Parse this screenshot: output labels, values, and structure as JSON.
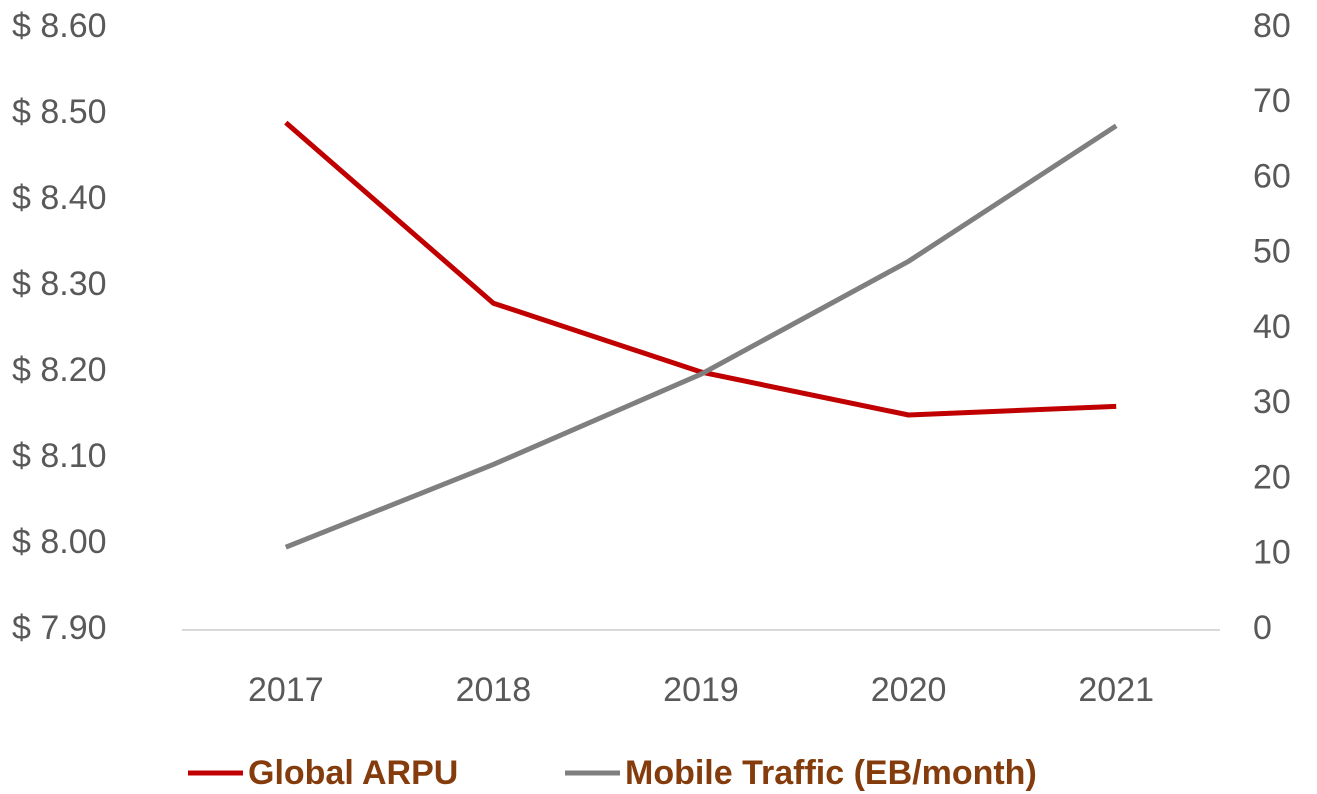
{
  "chart_data": {
    "type": "line",
    "categories": [
      "2017",
      "2018",
      "2019",
      "2020",
      "2021"
    ],
    "series": [
      {
        "name": "Global ARPU",
        "color": "#C00000",
        "values": [
          8.49,
          8.28,
          8.2,
          8.15,
          8.16
        ]
      },
      {
        "name": "Mobile Traffic (EB/month)",
        "color": "#7F7F7F",
        "axis": "y2",
        "values": [
          11,
          22,
          34,
          49,
          67
        ]
      }
    ],
    "ylim": [
      7.9,
      8.6
    ],
    "yticks": [
      {
        "value": 7.9,
        "label": "$ 7.90"
      },
      {
        "value": 8.0,
        "label": "$ 8.00"
      },
      {
        "value": 8.1,
        "label": "$ 8.10"
      },
      {
        "value": 8.2,
        "label": "$ 8.20"
      },
      {
        "value": 8.3,
        "label": "$ 8.30"
      },
      {
        "value": 8.4,
        "label": "$ 8.40"
      },
      {
        "value": 8.5,
        "label": "$ 8.50"
      },
      {
        "value": 8.6,
        "label": "$ 8.60"
      }
    ],
    "y2lim": [
      0,
      80
    ],
    "y2ticks": [
      0,
      10,
      20,
      30,
      40,
      50,
      60,
      70,
      80
    ],
    "legend": "bottom"
  }
}
